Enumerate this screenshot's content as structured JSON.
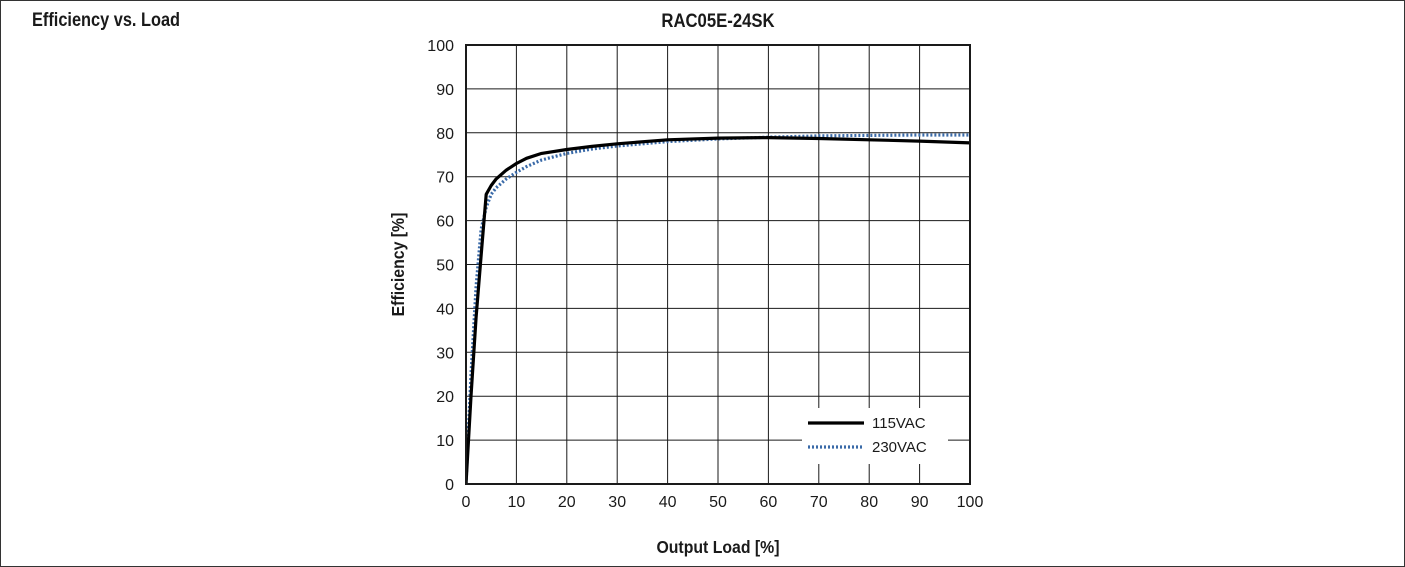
{
  "section_title": "Efficiency vs. Load",
  "colors": {
    "series_115": "#000000",
    "series_230": "#3a6aa8",
    "grid": "#1a1a1a"
  },
  "chart_data": {
    "type": "line",
    "title": "RAC05E-24SK",
    "xlabel": "Output Load [%]",
    "ylabel": "Efficiency [%]",
    "xlim": [
      0,
      100
    ],
    "ylim": [
      0,
      100
    ],
    "xticks": [
      0,
      10,
      20,
      30,
      40,
      50,
      60,
      70,
      80,
      90,
      100
    ],
    "yticks": [
      0,
      10,
      20,
      30,
      40,
      50,
      60,
      70,
      80,
      90,
      100
    ],
    "grid": true,
    "legend_position": "bottom-right",
    "series": [
      {
        "name": "115VAC",
        "style": "solid",
        "x": [
          0,
          1,
          2,
          3,
          4,
          5,
          6,
          8,
          10,
          12,
          15,
          20,
          25,
          30,
          40,
          50,
          60,
          70,
          80,
          90,
          100
        ],
        "y": [
          0,
          20,
          38,
          52,
          66,
          68,
          69.5,
          71.5,
          73,
          74.2,
          75.3,
          76.2,
          76.9,
          77.5,
          78.4,
          78.8,
          78.9,
          78.7,
          78.4,
          78.1,
          77.7
        ]
      },
      {
        "name": "230VAC",
        "style": "dotted",
        "x": [
          0,
          1,
          2,
          3,
          4,
          5,
          6,
          8,
          10,
          12,
          15,
          20,
          25,
          30,
          40,
          50,
          60,
          70,
          80,
          90,
          100
        ],
        "y": [
          0,
          25,
          45,
          58,
          63,
          66,
          67.5,
          69.5,
          71,
          72.3,
          73.8,
          75.3,
          76.3,
          77,
          78,
          78.6,
          79,
          79.3,
          79.4,
          79.5,
          79.5
        ]
      }
    ]
  }
}
